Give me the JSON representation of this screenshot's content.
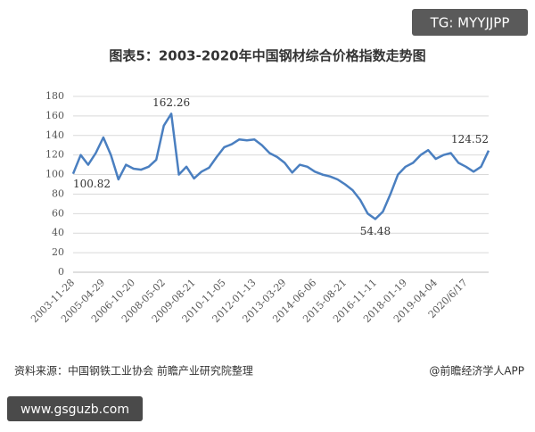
{
  "chart_data": {
    "type": "line",
    "title": "图表5：2003-2020年中国钢材综合价格指数走势图",
    "categories": [
      "2003-11-28",
      null,
      null,
      null,
      "2005-04-29",
      null,
      null,
      null,
      "2006-10-20",
      null,
      null,
      null,
      "2008-05-02",
      null,
      null,
      null,
      "2009-08-21",
      null,
      null,
      null,
      "2010-11-05",
      null,
      null,
      null,
      "2012-01-13",
      null,
      null,
      null,
      "2013-03-29",
      null,
      null,
      null,
      "2014-06-06",
      null,
      null,
      null,
      "2015-08-21",
      null,
      null,
      null,
      "2016-11-11",
      null,
      null,
      null,
      "2018-01-19",
      null,
      null,
      null,
      "2019-04-04",
      null,
      null,
      null,
      "2020/6/17",
      null,
      null,
      null
    ],
    "values": [
      100.82,
      120,
      110,
      122,
      138,
      120,
      95,
      110,
      106,
      105,
      108,
      115,
      150,
      162.26,
      100,
      108,
      96,
      103,
      107,
      118,
      128,
      131,
      136,
      135,
      136,
      130,
      122,
      118,
      112,
      102,
      110,
      108,
      103,
      100,
      98,
      95,
      90,
      84,
      74,
      60,
      54.48,
      62,
      80,
      100,
      108,
      112,
      120,
      125,
      116,
      120,
      122,
      112,
      108,
      103,
      108,
      124.52
    ],
    "value_labels": [
      "100.82",
      null,
      null,
      null,
      null,
      null,
      null,
      null,
      null,
      null,
      null,
      null,
      null,
      "162.26",
      null,
      null,
      null,
      null,
      null,
      null,
      null,
      null,
      null,
      null,
      null,
      null,
      null,
      null,
      null,
      null,
      null,
      null,
      null,
      null,
      null,
      null,
      null,
      null,
      null,
      null,
      "54.48",
      null,
      null,
      null,
      null,
      null,
      null,
      null,
      null,
      null,
      null,
      null,
      null,
      null,
      null,
      "124.52"
    ],
    "color": "#4a7fc0",
    "ylim": [
      0,
      180
    ],
    "yticks": [
      0,
      20,
      40,
      60,
      80,
      100,
      120,
      140,
      160,
      180
    ],
    "grid": true
  },
  "watermark": "TG: MYYJJPP",
  "source": "资料来源：中国钢铁工业协会 前瞻产业研究院整理",
  "credit": "@前瞻经济学人APP",
  "site": "www.gsguzb.com"
}
